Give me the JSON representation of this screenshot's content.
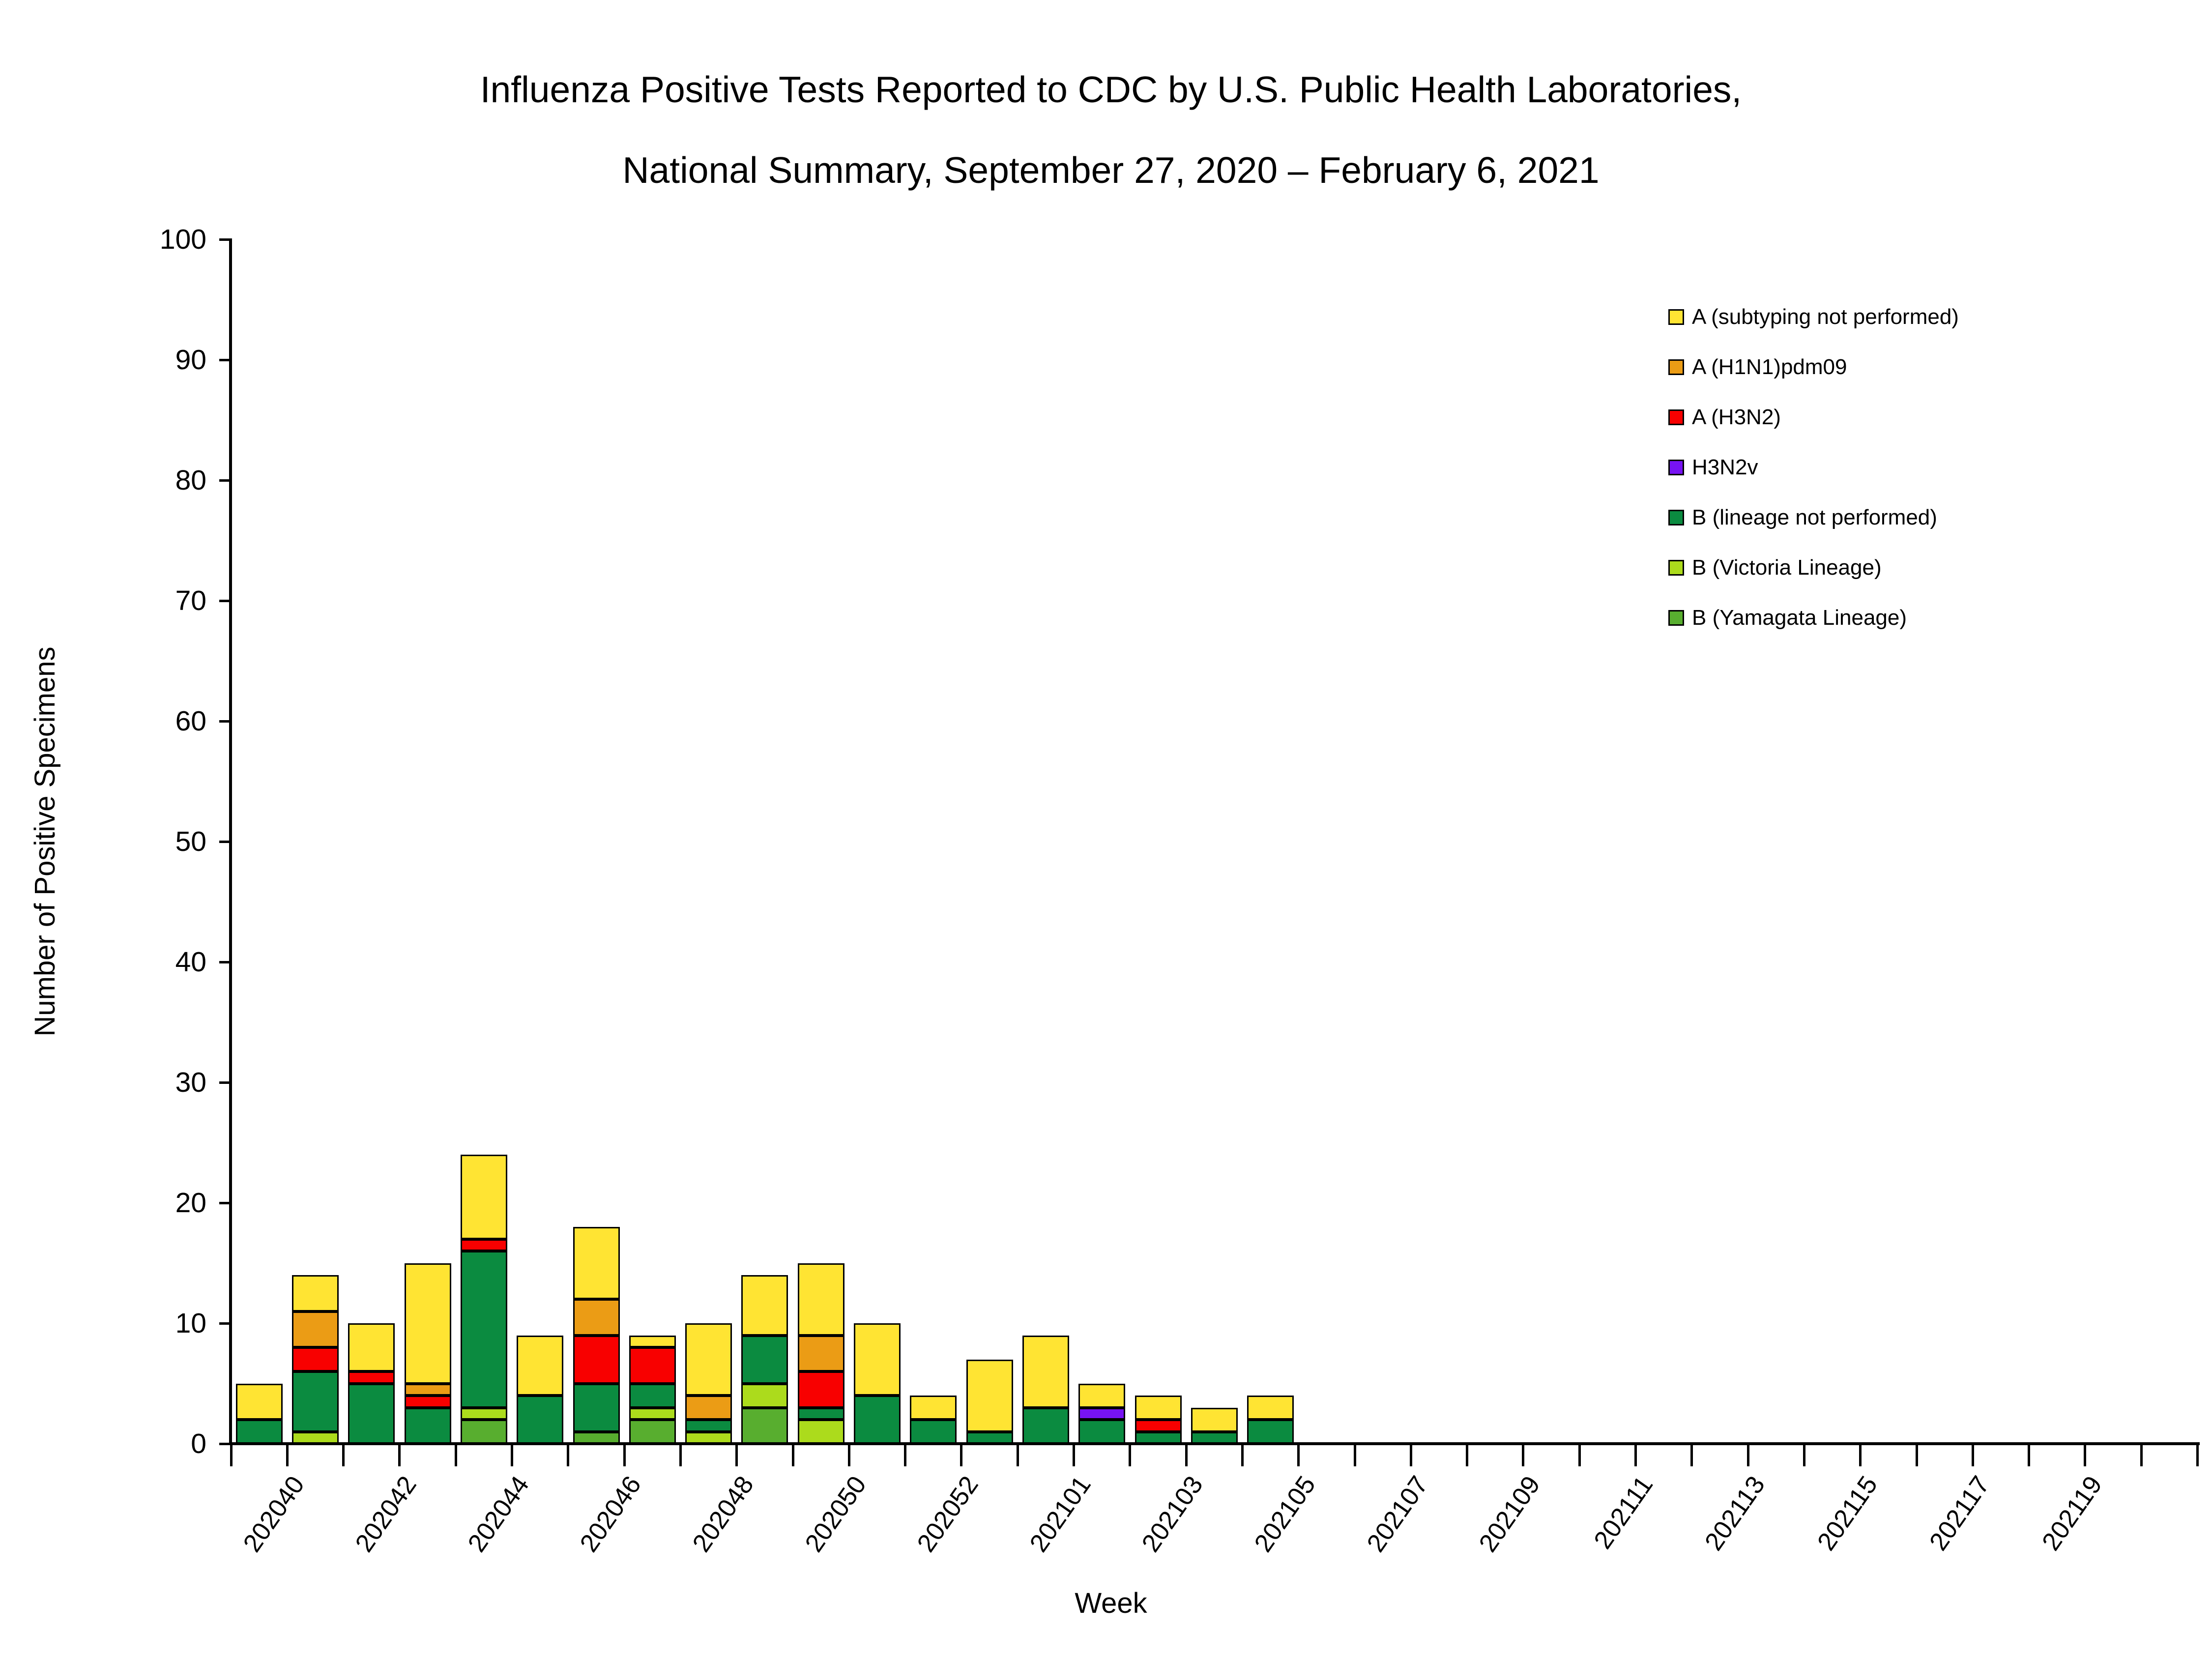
{
  "title": {
    "line1": "Influenza Positive Tests Reported to CDC by U.S. Public Health Laboratories,",
    "line2": "National Summary, September 27, 2020 – February 6, 2021"
  },
  "axes": {
    "y_title": "Number of Positive Specimens",
    "x_title": "Week",
    "y_tick_labels": [
      "0",
      "10",
      "20",
      "30",
      "40",
      "50",
      "60",
      "70",
      "80",
      "90",
      "100"
    ],
    "y_min": 0,
    "y_max": 100,
    "y_step": 10
  },
  "legend": {
    "position": "upper-right",
    "items": [
      {
        "label": "A (subtyping not performed)",
        "color": "#FFE433"
      },
      {
        "label": "A (H1N1)pdm09",
        "color": "#EB9C15"
      },
      {
        "label": "A (H3N2)",
        "color": "#F80000"
      },
      {
        "label": "H3N2v",
        "color": "#7713F2"
      },
      {
        "label": "B (lineage not performed)",
        "color": "#0B8B40"
      },
      {
        "label": "B (Victoria Lineage)",
        "color": "#ACDB1C"
      },
      {
        "label": "B (Yamagata Lineage)",
        "color": "#58AE2F"
      }
    ]
  },
  "chart_data": {
    "type": "bar",
    "stacked": true,
    "title": "Influenza Positive Tests Reported to CDC by U.S. Public Health Laboratories, National Summary, September 27, 2020 – February 6, 2021",
    "xlabel": "Week",
    "ylabel": "Number of Positive Specimens",
    "ylim": [
      0,
      100
    ],
    "grid": false,
    "legend_position": "upper right",
    "categories": [
      "202040",
      "202041",
      "202042",
      "202043",
      "202044",
      "202045",
      "202046",
      "202047",
      "202048",
      "202049",
      "202050",
      "202051",
      "202052",
      "202053",
      "202101",
      "202102",
      "202103",
      "202104",
      "202105"
    ],
    "x_tick_labels_shown": [
      "202040",
      "202042",
      "202044",
      "202046",
      "202048",
      "202050",
      "202052",
      "202101",
      "202103",
      "202105",
      "202107",
      "202109",
      "202111",
      "202113",
      "202115",
      "202117",
      "202119"
    ],
    "x_axis_total_slots": 35,
    "series": [
      {
        "name": "B (Yamagata Lineage)",
        "color": "#58AE2F",
        "values": [
          0,
          0,
          0,
          0,
          2,
          0,
          1,
          2,
          0,
          3,
          0,
          0,
          0,
          0,
          0,
          0,
          0,
          0,
          0
        ]
      },
      {
        "name": "B (Victoria Lineage)",
        "color": "#ACDB1C",
        "values": [
          0,
          1,
          0,
          0,
          1,
          0,
          0,
          1,
          1,
          2,
          2,
          0,
          0,
          0,
          0,
          0,
          0,
          0,
          0
        ]
      },
      {
        "name": "B (lineage not performed)",
        "color": "#0B8B40",
        "values": [
          2,
          5,
          5,
          3,
          13,
          4,
          4,
          2,
          1,
          4,
          1,
          4,
          2,
          1,
          3,
          2,
          1,
          1,
          2
        ]
      },
      {
        "name": "H3N2v",
        "color": "#7713F2",
        "values": [
          0,
          0,
          0,
          0,
          0,
          0,
          0,
          0,
          0,
          0,
          0,
          0,
          0,
          0,
          0,
          1,
          0,
          0,
          0
        ]
      },
      {
        "name": "A (H3N2)",
        "color": "#F80000",
        "values": [
          0,
          2,
          1,
          1,
          1,
          0,
          4,
          3,
          0,
          0,
          3,
          0,
          0,
          0,
          0,
          0,
          1,
          0,
          0
        ]
      },
      {
        "name": "A (H1N1)pdm09",
        "color": "#EB9C15",
        "values": [
          0,
          3,
          0,
          1,
          0,
          0,
          3,
          0,
          2,
          0,
          3,
          0,
          0,
          0,
          0,
          0,
          0,
          0,
          0
        ]
      },
      {
        "name": "A (subtyping not performed)",
        "color": "#FFE433",
        "values": [
          3,
          3,
          4,
          10,
          7,
          5,
          6,
          1,
          6,
          5,
          6,
          6,
          2,
          6,
          6,
          2,
          2,
          2,
          2
        ]
      }
    ],
    "totals": [
      5,
      14,
      10,
      15,
      24,
      9,
      18,
      9,
      10,
      14,
      15,
      10,
      4,
      7,
      9,
      5,
      4,
      3,
      4
    ]
  }
}
